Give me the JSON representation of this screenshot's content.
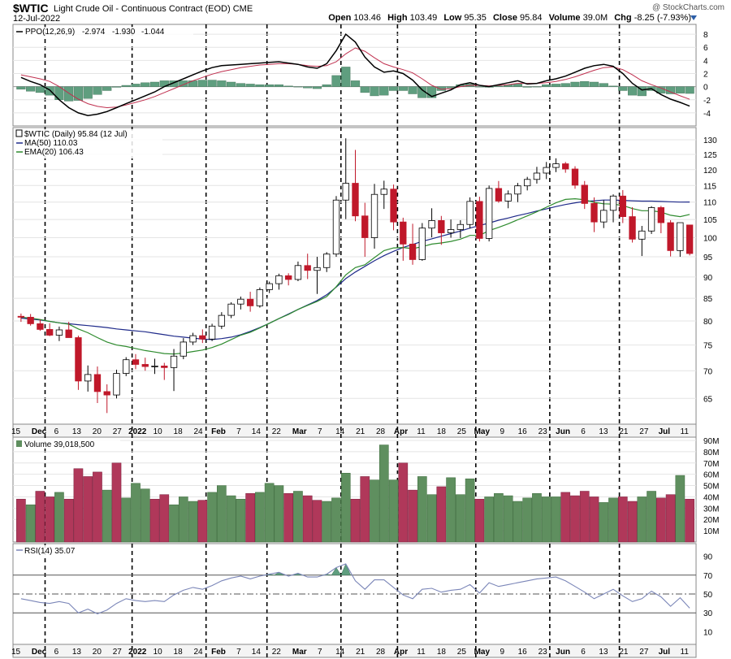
{
  "header": {
    "symbol": "$WTIC",
    "description": "Light Crude Oil - Continuous Contract (EOD)",
    "exchange": "CME",
    "date": "12-Jul-2022",
    "credit": "@ StockCharts.com",
    "open_label": "Open",
    "open": "103.46",
    "high_label": "High",
    "high": "103.49",
    "low_label": "Low",
    "low": "95.35",
    "close_label": "Close",
    "close": "95.84",
    "volume_label": "Volume",
    "volume": "39.0M",
    "chg_label": "Chg",
    "chg": "-8.25 (-7.93%)"
  },
  "colors": {
    "up": "#2e7d32",
    "down": "#c0182a",
    "ma50": "#1f2a8a",
    "ema20": "#2e8b2e",
    "ppo": "#000000",
    "signal": "#c0304f",
    "hist": "#5f9e7f",
    "vol_up": "#5f8f5f",
    "vol_down": "#b0385a",
    "rsi": "#7b86b8",
    "rsi_fill": "#5f9e7f"
  },
  "chart_data": [
    {
      "type": "line",
      "title": "PPO(12,26,9)",
      "legend": [
        "PPO(12,26,9)",
        "-2.974",
        "-1.930",
        "-1.044"
      ],
      "ylim": [
        -5,
        9
      ],
      "yticks": [
        8,
        6,
        4,
        2,
        0,
        -2,
        -4
      ],
      "series": [
        {
          "name": "PPO",
          "values": [
            1.4,
            0.8,
            0.3,
            -0.5,
            -2.0,
            -3.2,
            -4.0,
            -4.4,
            -4.2,
            -3.8,
            -3.2,
            -2.6,
            -2.0,
            -1.4,
            -0.8,
            0.0,
            0.6,
            1.2,
            1.8,
            2.4,
            2.9,
            3.2,
            3.3,
            3.4,
            3.5,
            3.6,
            3.7,
            3.8,
            3.6,
            3.4,
            3.0,
            2.8,
            3.5,
            5.5,
            8.0,
            6.8,
            4.5,
            3.0,
            2.2,
            2.4,
            2.0,
            1.0,
            -0.5,
            -1.5,
            -1.0,
            -0.5,
            0.3,
            0.6,
            0.2,
            0.0,
            0.3,
            0.6,
            0.9,
            0.4,
            0.5,
            0.9,
            1.2,
            1.6,
            2.2,
            2.8,
            3.2,
            3.4,
            3.1,
            2.0,
            0.5,
            -0.5,
            -0.3,
            -1.2,
            -1.9,
            -2.4,
            -2.97
          ]
        },
        {
          "name": "Signal",
          "values": [
            1.8,
            1.5,
            1.2,
            0.8,
            0.0,
            -1.0,
            -1.9,
            -2.6,
            -3.0,
            -3.2,
            -3.1,
            -2.8,
            -2.4,
            -2.0,
            -1.5,
            -0.9,
            -0.3,
            0.3,
            0.9,
            1.4,
            1.9,
            2.3,
            2.6,
            2.9,
            3.1,
            3.3,
            3.4,
            3.5,
            3.5,
            3.4,
            3.2,
            3.1,
            3.2,
            3.8,
            5.0,
            5.9,
            5.4,
            4.4,
            3.5,
            3.0,
            2.6,
            2.1,
            1.2,
            0.2,
            -0.4,
            -0.3,
            0.0,
            0.2,
            0.2,
            0.1,
            0.2,
            0.3,
            0.5,
            0.5,
            0.5,
            0.6,
            0.8,
            1.1,
            1.5,
            2.0,
            2.5,
            2.9,
            3.0,
            2.6,
            1.8,
            0.9,
            0.3,
            -0.2,
            -0.8,
            -1.4,
            -1.93
          ]
        },
        {
          "name": "Histogram",
          "values": [
            -0.4,
            -0.7,
            -0.9,
            -1.3,
            -2.0,
            -2.2,
            -2.1,
            -1.8,
            -1.2,
            -0.6,
            -0.1,
            0.2,
            0.4,
            0.6,
            0.7,
            0.9,
            0.9,
            0.9,
            0.9,
            1.0,
            1.0,
            0.9,
            0.7,
            0.5,
            0.4,
            0.3,
            0.3,
            0.3,
            0.1,
            0.0,
            -0.2,
            -0.3,
            0.3,
            1.7,
            3.0,
            0.9,
            -0.9,
            -1.4,
            -1.3,
            -0.6,
            -0.6,
            -1.1,
            -1.7,
            -1.7,
            -0.6,
            -0.2,
            0.3,
            0.4,
            0.0,
            -0.1,
            0.1,
            0.3,
            0.4,
            -0.1,
            0.0,
            0.3,
            0.4,
            0.5,
            0.7,
            0.8,
            0.7,
            0.5,
            0.1,
            -0.6,
            -1.3,
            -1.4,
            -0.6,
            -1.0,
            -1.1,
            -1.0,
            -1.04
          ]
        }
      ]
    },
    {
      "type": "candlestick",
      "title": "$WTIC (Daily) 95.84 (12 Jul)",
      "legend": [
        "$WTIC (Daily) 95.84 (12 Jul)",
        "MA(50) 110.03",
        "EMA(20) 106.43"
      ],
      "yscale": "log",
      "ylim": [
        62,
        132
      ],
      "yticks": [
        130,
        125,
        120,
        115,
        110,
        105,
        100,
        95,
        90,
        85,
        80,
        75,
        70,
        65
      ],
      "ohlc": [
        [
          81.0,
          81.6,
          79.8,
          80.8
        ],
        [
          80.8,
          81.5,
          79.0,
          79.4
        ],
        [
          79.4,
          80.3,
          77.9,
          78.2
        ],
        [
          78.2,
          79.5,
          76.8,
          77.0
        ],
        [
          77.0,
          78.8,
          75.8,
          78.1
        ],
        [
          78.1,
          79.8,
          77.0,
          76.5
        ],
        [
          76.5,
          76.9,
          66.5,
          68.1
        ],
        [
          68.1,
          71.0,
          66.2,
          69.3
        ],
        [
          69.3,
          70.8,
          64.2,
          66.2
        ],
        [
          66.2,
          67.5,
          62.5,
          65.6
        ],
        [
          65.6,
          70.2,
          65.0,
          69.5
        ],
        [
          69.5,
          72.6,
          69.0,
          72.1
        ],
        [
          72.1,
          73.2,
          70.3,
          71.2
        ],
        [
          71.2,
          72.5,
          70.0,
          70.8
        ],
        [
          70.8,
          72.3,
          69.4,
          70.9
        ],
        [
          70.9,
          71.5,
          68.3,
          70.6
        ],
        [
          70.6,
          74.2,
          66.3,
          72.8
        ],
        [
          72.8,
          76.4,
          72.2,
          75.6
        ],
        [
          75.6,
          77.5,
          75.0,
          76.9
        ],
        [
          76.9,
          78.2,
          75.4,
          76.2
        ],
        [
          76.2,
          79.4,
          75.8,
          78.9
        ],
        [
          78.9,
          81.9,
          78.3,
          81.2
        ],
        [
          81.2,
          84.1,
          80.6,
          83.7
        ],
        [
          83.7,
          85.4,
          82.5,
          84.8
        ],
        [
          84.8,
          86.5,
          82.0,
          83.3
        ],
        [
          83.3,
          87.5,
          82.9,
          87.0
        ],
        [
          87.0,
          88.9,
          86.2,
          88.4
        ],
        [
          88.4,
          90.8,
          87.0,
          90.3
        ],
        [
          90.3,
          90.9,
          88.0,
          89.4
        ],
        [
          89.4,
          93.8,
          89.0,
          92.8
        ],
        [
          92.8,
          95.8,
          89.5,
          91.6
        ],
        [
          91.6,
          95.0,
          86.0,
          92.3
        ],
        [
          92.3,
          96.2,
          91.2,
          95.7
        ],
        [
          95.7,
          111.8,
          95.0,
          110.6
        ],
        [
          110.6,
          130.5,
          105.1,
          115.7
        ],
        [
          115.7,
          126.5,
          104.5,
          106.0
        ],
        [
          106.0,
          109.8,
          95.0,
          100.0
        ],
        [
          100.0,
          115.5,
          97.1,
          112.3
        ],
        [
          112.3,
          116.5,
          108.0,
          113.9
        ],
        [
          113.9,
          115.3,
          102.0,
          104.3
        ],
        [
          104.3,
          105.5,
          94.0,
          98.3
        ],
        [
          98.3,
          103.8,
          93.0,
          94.3
        ],
        [
          94.3,
          104.0,
          94.0,
          102.6
        ],
        [
          102.6,
          108.2,
          100.1,
          104.7
        ],
        [
          104.7,
          106.0,
          98.1,
          101.3
        ],
        [
          101.3,
          105.0,
          100.0,
          102.2
        ],
        [
          102.2,
          104.8,
          99.9,
          103.6
        ],
        [
          103.6,
          111.4,
          102.5,
          110.2
        ],
        [
          110.2,
          111.6,
          99.0,
          99.8
        ],
        [
          99.8,
          115.0,
          99.0,
          114.1
        ],
        [
          114.1,
          116.4,
          109.8,
          110.3
        ],
        [
          110.3,
          113.5,
          108.2,
          112.4
        ],
        [
          112.4,
          115.8,
          110.0,
          114.9
        ],
        [
          114.9,
          117.7,
          113.5,
          116.9
        ],
        [
          116.9,
          120.9,
          115.6,
          118.9
        ],
        [
          118.9,
          122.5,
          117.0,
          120.7
        ],
        [
          120.7,
          123.7,
          119.2,
          121.9
        ],
        [
          121.9,
          122.5,
          119.0,
          120.2
        ],
        [
          120.2,
          121.1,
          114.0,
          115.1
        ],
        [
          115.1,
          116.4,
          108.0,
          109.6
        ],
        [
          109.6,
          111.4,
          101.5,
          104.3
        ],
        [
          104.3,
          110.6,
          102.6,
          107.6
        ],
        [
          107.6,
          112.3,
          104.2,
          111.8
        ],
        [
          111.8,
          113.6,
          104.0,
          105.8
        ],
        [
          105.8,
          108.5,
          98.7,
          99.6
        ],
        [
          99.6,
          103.2,
          95.2,
          101.8
        ],
        [
          101.8,
          108.8,
          101.0,
          108.4
        ],
        [
          108.4,
          108.9,
          101.2,
          104.1
        ],
        [
          104.1,
          104.8,
          95.1,
          96.6
        ],
        [
          96.6,
          103.5,
          95.0,
          104.1
        ],
        [
          103.46,
          103.49,
          95.35,
          95.84
        ]
      ],
      "series": [
        {
          "name": "MA(50)",
          "values": [
            80.6,
            80.4,
            80.2,
            79.9,
            79.6,
            79.4,
            79.2,
            79.0,
            78.8,
            78.6,
            78.3,
            78.1,
            77.9,
            77.7,
            77.4,
            77.1,
            76.8,
            76.6,
            76.4,
            76.2,
            76.1,
            76.3,
            76.6,
            77.1,
            77.8,
            78.6,
            79.5,
            80.5,
            81.5,
            82.5,
            83.5,
            84.5,
            85.8,
            87.6,
            89.6,
            91.2,
            92.6,
            94.0,
            95.3,
            96.4,
            97.4,
            98.2,
            99.0,
            99.7,
            100.4,
            101.1,
            101.8,
            102.6,
            103.3,
            104.0,
            104.8,
            105.4,
            106.1,
            106.7,
            107.4,
            108.0,
            108.7,
            109.3,
            109.8,
            110.2,
            110.4,
            110.6,
            110.6,
            110.5,
            110.4,
            110.3,
            110.3,
            110.2,
            110.1,
            110.0,
            110.03
          ]
        },
        {
          "name": "EMA(20)",
          "values": [
            80.8,
            80.6,
            80.3,
            79.9,
            79.6,
            79.3,
            78.3,
            77.5,
            76.5,
            75.6,
            75.0,
            74.7,
            74.3,
            73.9,
            73.6,
            73.3,
            73.2,
            73.4,
            73.7,
            74.0,
            74.5,
            75.2,
            76.1,
            77.0,
            77.6,
            78.5,
            79.5,
            80.5,
            81.4,
            82.5,
            83.4,
            84.3,
            85.4,
            87.7,
            90.5,
            92.3,
            93.0,
            94.8,
            96.6,
            97.3,
            97.4,
            97.1,
            97.6,
            98.3,
            98.6,
            99.0,
            99.6,
            100.6,
            100.6,
            101.9,
            102.8,
            103.8,
            104.9,
            106.0,
            107.2,
            108.5,
            109.8,
            110.8,
            111.0,
            110.7,
            109.9,
            109.5,
            109.4,
            109.0,
            108.1,
            107.5,
            107.5,
            107.1,
            106.2,
            105.8,
            106.43
          ]
        }
      ]
    },
    {
      "type": "bar",
      "title": "Volume 39,018,500",
      "legend": [
        "Volume 39,018,500"
      ],
      "ylim": [
        0,
        90
      ],
      "yticks": [
        "90M",
        "80M",
        "70M",
        "60M",
        "50M",
        "40M",
        "30M",
        "20M",
        "10M"
      ],
      "values_millions": [
        38,
        33,
        45,
        40,
        44,
        38,
        65,
        58,
        62,
        46,
        70,
        39,
        52,
        47,
        38,
        42,
        33,
        40,
        36,
        37,
        44,
        50,
        41,
        38,
        43,
        44,
        52,
        50,
        43,
        45,
        41,
        37,
        36,
        39,
        61,
        38,
        58,
        55,
        86,
        55,
        70,
        46,
        58,
        42,
        49,
        57,
        42,
        56,
        38,
        40,
        43,
        41,
        36,
        39,
        43,
        40,
        40,
        44,
        41,
        45,
        40,
        35,
        39,
        40,
        36,
        40,
        45,
        39,
        42,
        59,
        38
      ],
      "down": [
        1,
        0,
        1,
        1,
        0,
        1,
        1,
        1,
        1,
        0,
        1,
        0,
        0,
        0,
        1,
        1,
        0,
        0,
        0,
        1,
        0,
        0,
        0,
        0,
        1,
        0,
        0,
        0,
        1,
        0,
        1,
        1,
        0,
        0,
        0,
        1,
        1,
        0,
        0,
        0,
        1,
        1,
        0,
        0,
        1,
        0,
        0,
        0,
        1,
        0,
        0,
        0,
        0,
        0,
        0,
        0,
        0,
        1,
        1,
        1,
        1,
        0,
        0,
        1,
        1,
        0,
        0,
        1,
        1,
        0,
        1
      ]
    },
    {
      "type": "line",
      "title": "RSI(14) 35.07",
      "legend": [
        "RSI(14) 35.07"
      ],
      "ylim": [
        0,
        100
      ],
      "yticks": [
        90,
        70,
        50,
        30,
        10
      ],
      "series": [
        {
          "name": "RSI(14)",
          "values": [
            45,
            43,
            41,
            40,
            42,
            40,
            30,
            34,
            29,
            33,
            40,
            45,
            43,
            42,
            43,
            42,
            49,
            54,
            57,
            55,
            59,
            64,
            67,
            69,
            66,
            69,
            71,
            73,
            69,
            72,
            68,
            68,
            71,
            78,
            82,
            64,
            55,
            65,
            65,
            57,
            49,
            45,
            55,
            56,
            52,
            54,
            55,
            60,
            51,
            62,
            58,
            60,
            62,
            64,
            66,
            67,
            68,
            64,
            58,
            52,
            45,
            50,
            55,
            48,
            42,
            45,
            53,
            47,
            37,
            46,
            35
          ]
        }
      ]
    }
  ],
  "x_axis": {
    "labels": [
      "15",
      "Dec",
      "6",
      "13",
      "20",
      "27",
      "2022",
      "10",
      "18",
      "24",
      "Feb",
      "7",
      "14",
      "22",
      "Mar",
      "7",
      "14",
      "21",
      "28",
      "Apr",
      "11",
      "18",
      "25",
      "May",
      "9",
      "16",
      "23",
      "Jun",
      "6",
      "13",
      "21",
      "27",
      "Jul",
      "11"
    ],
    "bold": [
      "Dec",
      "2022",
      "Feb",
      "Mar",
      "Apr",
      "May",
      "Jun",
      "Jul"
    ]
  }
}
